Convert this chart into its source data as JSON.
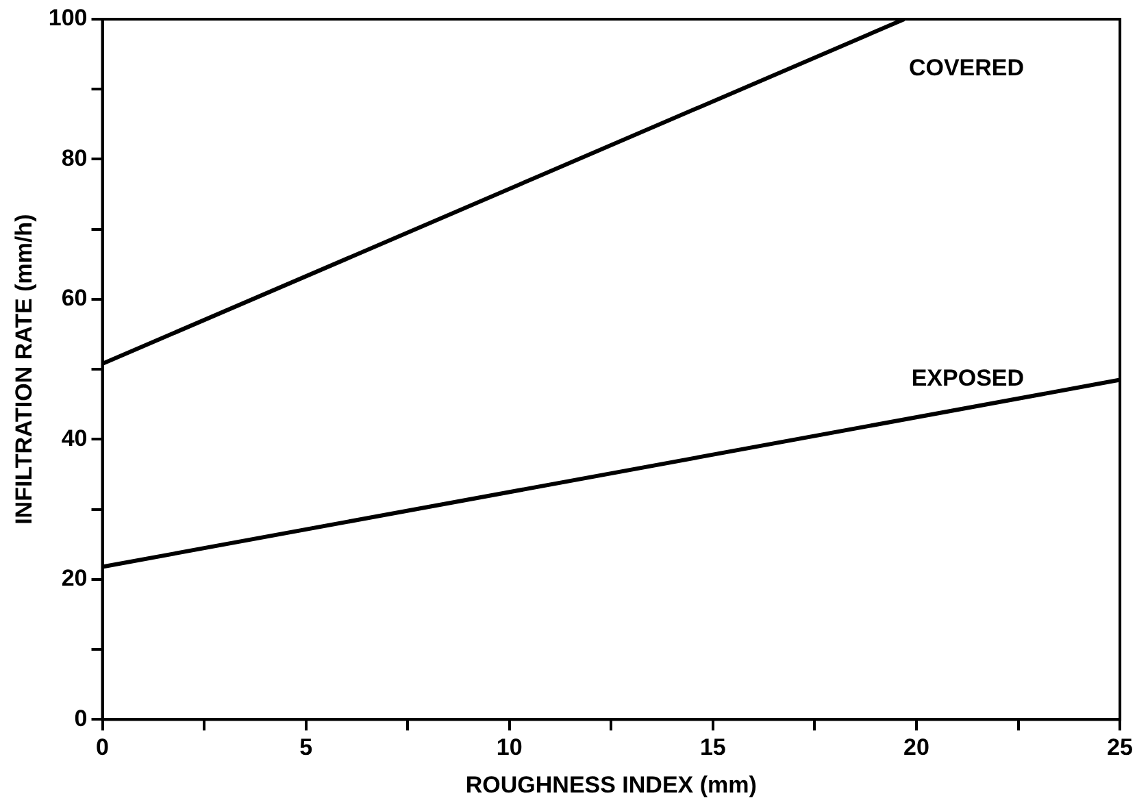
{
  "chart_data": {
    "type": "line",
    "xlabel": "ROUGHNESS INDEX (mm)",
    "ylabel": "INFILTRATION RATE (mm/h)",
    "series": [
      {
        "name": "COVERED",
        "color": "#000000",
        "x": [
          0,
          19.7
        ],
        "values": [
          50.8,
          100
        ]
      },
      {
        "name": "EXPOSED",
        "color": "#000000",
        "x": [
          0,
          25
        ],
        "values": [
          21.8,
          48.5
        ]
      }
    ],
    "xlim": [
      0,
      25
    ],
    "xticks": [
      0,
      {
        "value": 2.5,
        "label": null
      },
      5,
      {
        "value": 7.5,
        "label": null
      },
      10,
      {
        "value": 12.5,
        "label": null
      },
      15,
      {
        "value": 17.5,
        "label": null
      },
      20,
      {
        "value": 22.5,
        "label": null
      },
      25
    ],
    "ylim": [
      0,
      100
    ],
    "yticks": [
      0,
      {
        "value": 10,
        "label": null
      },
      20,
      {
        "value": 30,
        "label": null
      },
      40,
      {
        "value": 50,
        "label": null
      },
      60,
      {
        "value": 70,
        "label": null
      },
      80,
      {
        "value": 90,
        "label": null
      },
      100
    ],
    "grid": false,
    "legend": false,
    "marker": "none",
    "line_style": "solid"
  }
}
